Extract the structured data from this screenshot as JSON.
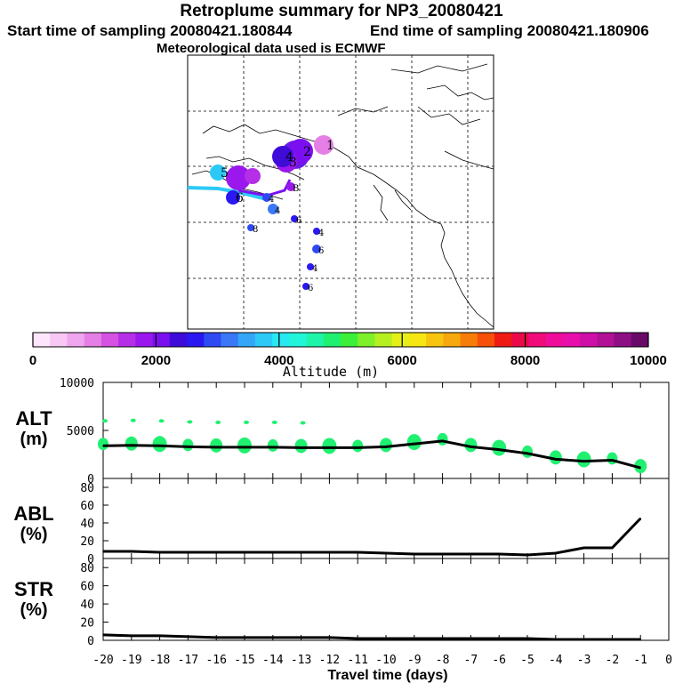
{
  "header": {
    "title": "Retroplume summary for NP3_20080421",
    "start_label": "Start time of sampling 20080421.180844",
    "end_label": "End time of sampling 20080421.180906",
    "met_label": "Meteorological data used is ECMWF"
  },
  "colorbar": {
    "tick_labels": [
      "0",
      "2000",
      "4000",
      "6000",
      "8000",
      "10000"
    ],
    "label": "Altitude (m)",
    "colors": [
      "#fde6fb",
      "#f6c8f3",
      "#efa6ee",
      "#e57fe6",
      "#d552e3",
      "#b52fe6",
      "#9a18ee",
      "#7a10f0",
      "#3f0bd8",
      "#2a18f0",
      "#2e4af3",
      "#3a78f6",
      "#34a6f8",
      "#2cc9f7",
      "#28e8f2",
      "#22f5d9",
      "#1ef5a8",
      "#20f070",
      "#3cf03a",
      "#7ef02a",
      "#b7f020",
      "#e4f018",
      "#f8e612",
      "#f7c510",
      "#f7a80c",
      "#f77d0a",
      "#f75008",
      "#f01a14",
      "#ea0a4a",
      "#f00a7a",
      "#f00c9a",
      "#e80eaa",
      "#cf10a8",
      "#b21096",
      "#8e0e84",
      "#6a0a68"
    ]
  },
  "map": {
    "markers": [
      {
        "label": "1",
        "color": "#e57fe6"
      },
      {
        "label": "2",
        "color": "#7a10f0"
      },
      {
        "label": "3",
        "color": "#9a18ee"
      },
      {
        "label": "4",
        "color": "#3f0bd8"
      },
      {
        "label": "5",
        "color": "#2cc9f7"
      },
      {
        "label": "6",
        "color": "#2a18f0"
      },
      {
        "label": "B",
        "color": "#9a18ee"
      },
      {
        "label": "4",
        "color": "#2e4af3"
      },
      {
        "label": "4",
        "color": "#3a78f6"
      },
      {
        "label": "8",
        "color": "#2e4af3"
      },
      {
        "label": "6",
        "color": "#2a18f0"
      },
      {
        "label": "4",
        "color": "#2a18f0"
      },
      {
        "label": "6",
        "color": "#2e4af3"
      },
      {
        "label": "4",
        "color": "#2a18f0"
      },
      {
        "label": "6",
        "color": "#2a18f0"
      }
    ]
  },
  "chart_data": [
    {
      "type": "line",
      "title": "ALT",
      "ylabel": "(m)",
      "x": [
        -20,
        -19,
        -18,
        -17,
        -16,
        -15,
        -14,
        -13,
        -12,
        -11,
        -10,
        -9,
        -8,
        -7,
        -6,
        -5,
        -4,
        -3,
        -2,
        -1
      ],
      "values": [
        3400,
        3450,
        3400,
        3300,
        3250,
        3250,
        3250,
        3200,
        3200,
        3200,
        3300,
        3600,
        3900,
        3300,
        3000,
        2600,
        2000,
        1800,
        1900,
        1100
      ],
      "ylim": [
        0,
        10000
      ],
      "ytick_labels": [
        "10000",
        "5000",
        "0"
      ]
    },
    {
      "type": "line",
      "title": "ABL",
      "ylabel": "(%)",
      "x": [
        -20,
        -19,
        -18,
        -17,
        -16,
        -15,
        -14,
        -13,
        -12,
        -11,
        -10,
        -9,
        -8,
        -7,
        -6,
        -5,
        -4,
        -3,
        -2,
        -1
      ],
      "values": [
        8,
        8,
        7,
        7,
        7,
        7,
        7,
        7,
        7,
        7,
        6,
        5,
        5,
        5,
        5,
        4,
        6,
        12,
        12,
        45
      ],
      "ylim": [
        0,
        90
      ],
      "ytick_labels": [
        "80",
        "60",
        "40",
        "20",
        "0"
      ]
    },
    {
      "type": "line",
      "title": "STR",
      "ylabel": "(%)",
      "x": [
        -20,
        -19,
        -18,
        -17,
        -16,
        -15,
        -14,
        -13,
        -12,
        -11,
        -10,
        -9,
        -8,
        -7,
        -6,
        -5,
        -4,
        -3,
        -2,
        -1
      ],
      "values": [
        6,
        5,
        5,
        4,
        3,
        3,
        3,
        3,
        3,
        2,
        2,
        2,
        2,
        2,
        2,
        2,
        1,
        1,
        1,
        1
      ],
      "ylim": [
        0,
        90
      ],
      "ytick_labels": [
        "80",
        "60",
        "40",
        "20",
        "0"
      ]
    }
  ],
  "x_axis": {
    "tick_labels": [
      "-20",
      "-19",
      "-18",
      "-17",
      "-16",
      "-15",
      "-14",
      "-13",
      "-12",
      "-11",
      "-10",
      "-9",
      "-8",
      "-7",
      "-6",
      "-5",
      "-4",
      "-3",
      "-2",
      "-1",
      "0"
    ],
    "label": "Travel time (days)"
  }
}
